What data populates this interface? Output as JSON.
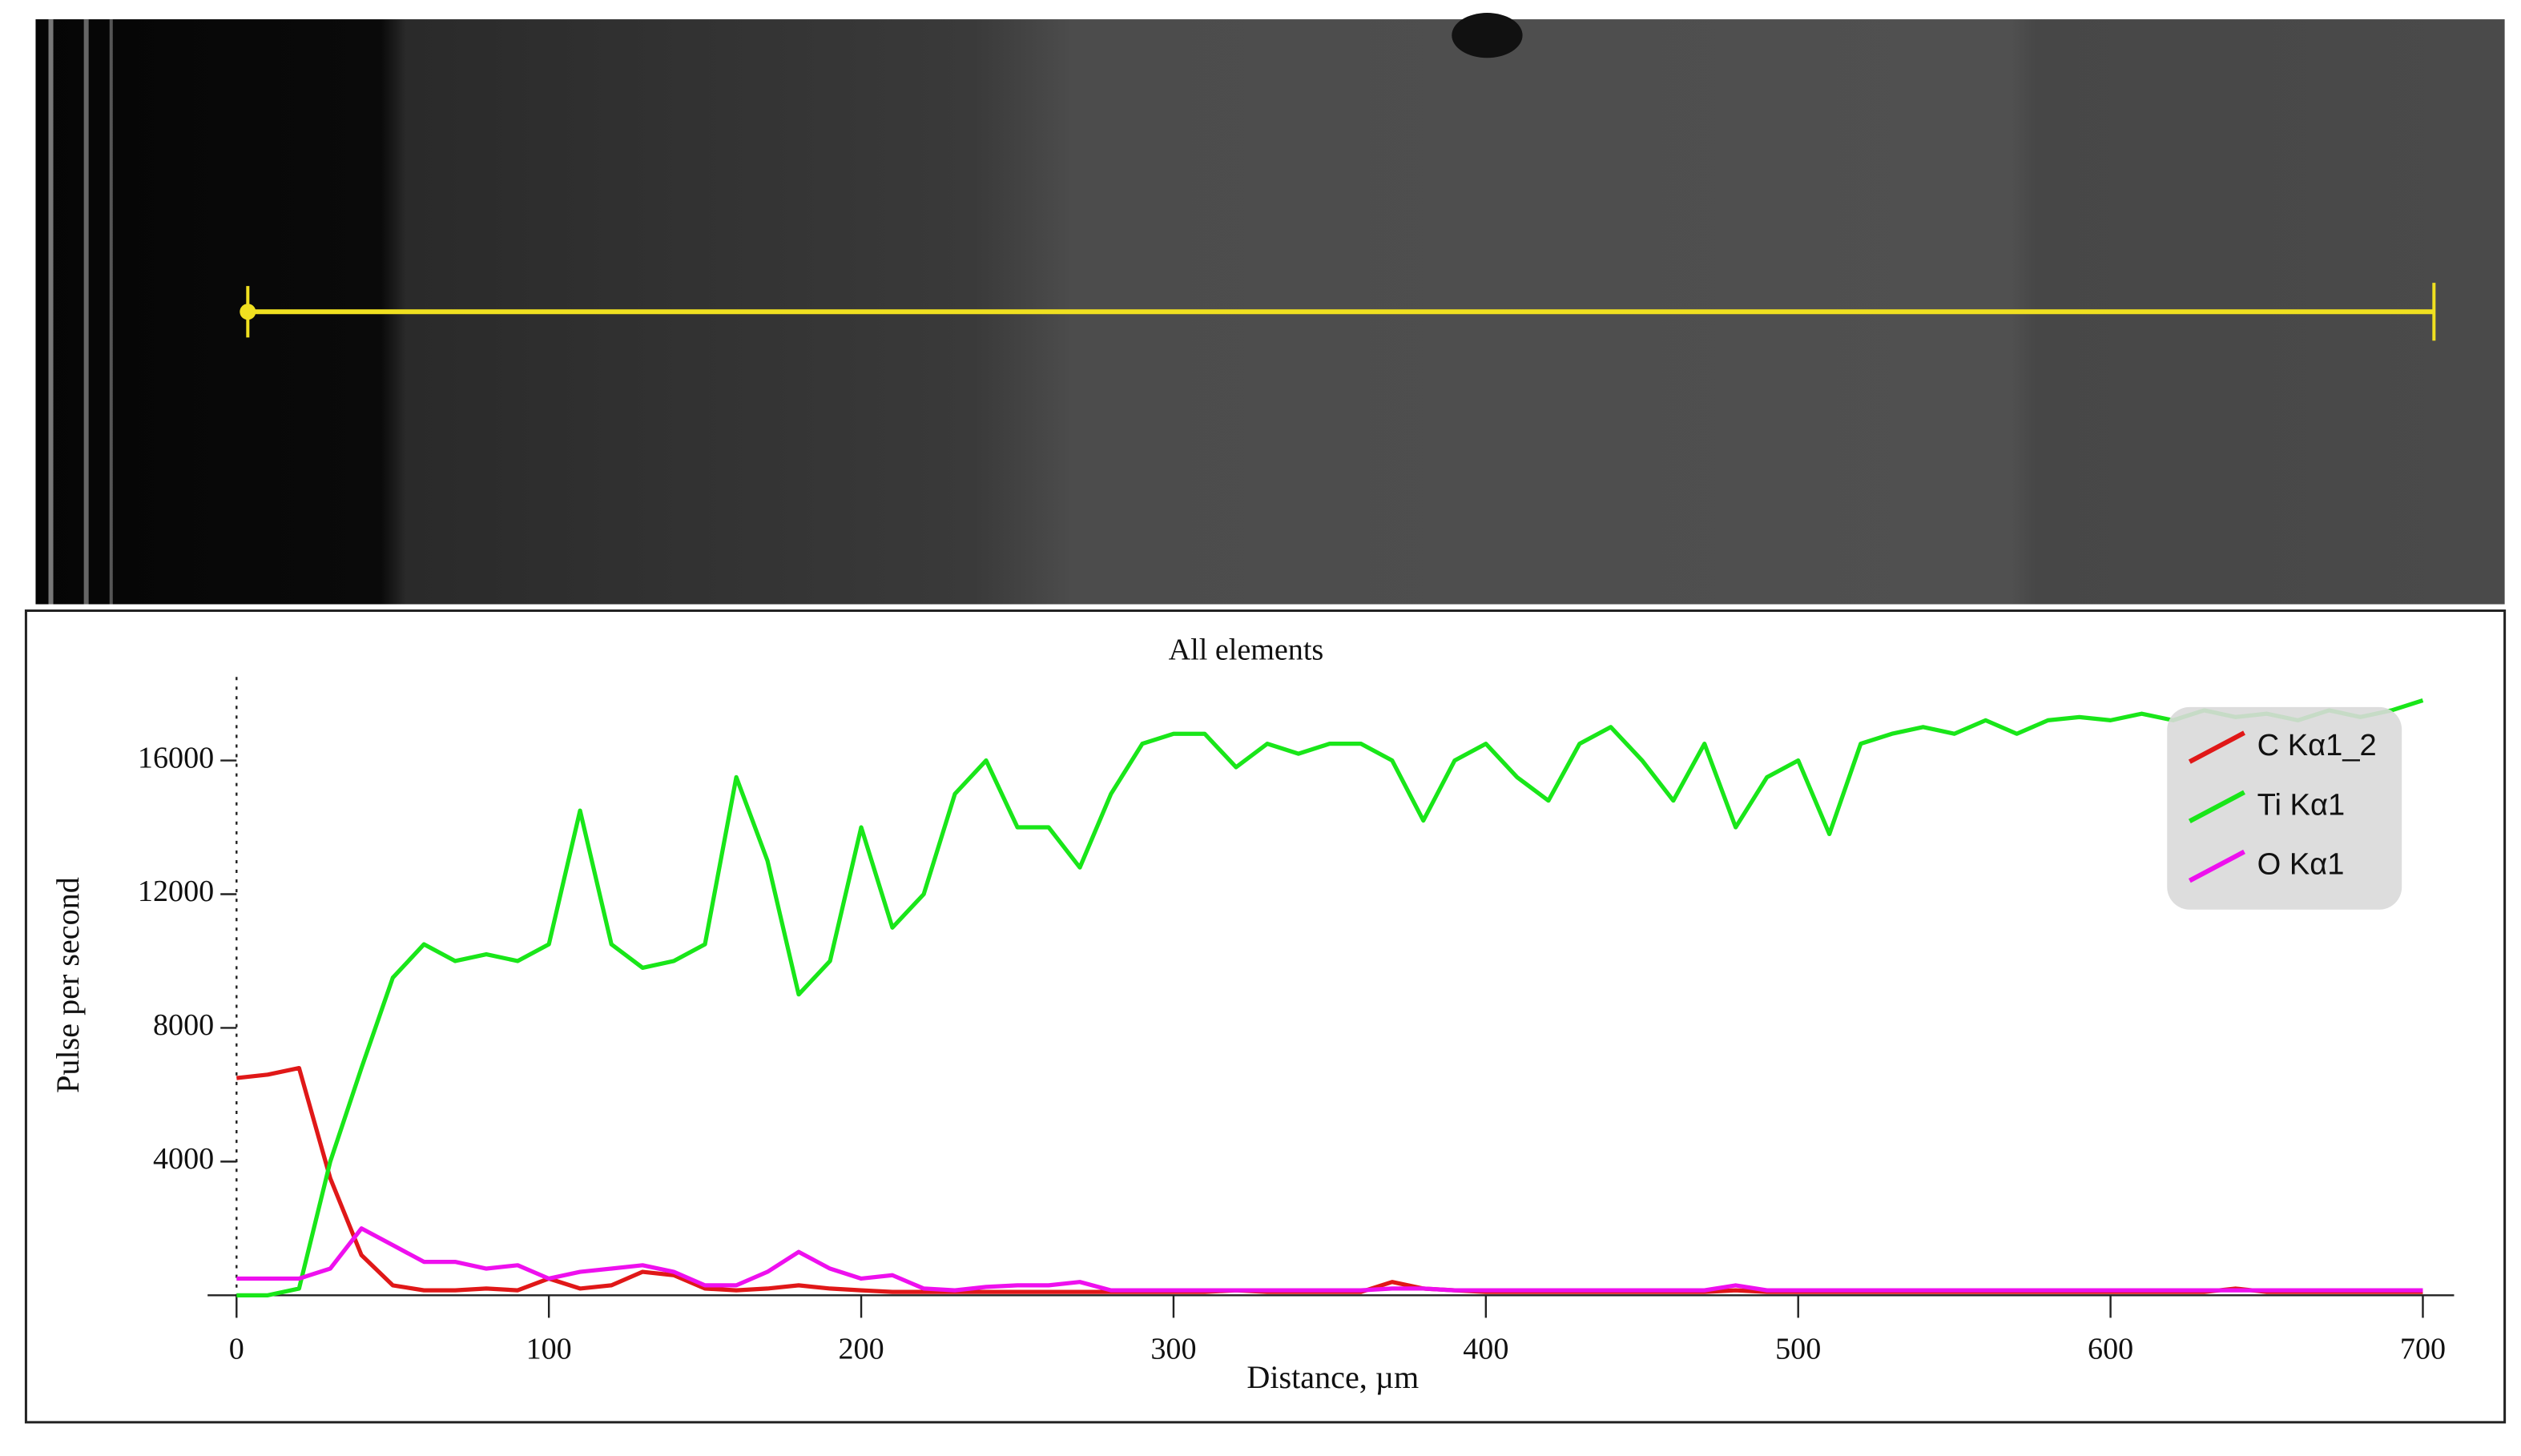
{
  "chart_data": {
    "type": "line",
    "title": "All elements",
    "xlabel": "Distance, µm",
    "ylabel": "Pulse per second",
    "x": [
      0,
      10,
      20,
      30,
      40,
      50,
      60,
      70,
      80,
      90,
      100,
      110,
      120,
      130,
      140,
      150,
      160,
      170,
      180,
      190,
      200,
      210,
      220,
      230,
      240,
      250,
      260,
      270,
      280,
      290,
      300,
      310,
      320,
      330,
      340,
      350,
      360,
      370,
      380,
      390,
      400,
      410,
      420,
      430,
      440,
      450,
      460,
      470,
      480,
      490,
      500,
      510,
      520,
      530,
      540,
      550,
      560,
      570,
      580,
      590,
      600,
      610,
      620,
      630,
      640,
      650,
      660,
      670,
      680,
      690,
      700
    ],
    "series": [
      {
        "name": "C Kα1_2",
        "color": "#e01818",
        "values": [
          6500,
          6600,
          6800,
          3500,
          1200,
          300,
          150,
          150,
          200,
          150,
          500,
          200,
          300,
          700,
          600,
          200,
          150,
          200,
          300,
          200,
          150,
          100,
          100,
          100,
          100,
          100,
          100,
          100,
          100,
          100,
          100,
          100,
          150,
          100,
          100,
          100,
          100,
          400,
          200,
          150,
          100,
          100,
          100,
          100,
          100,
          100,
          100,
          100,
          150,
          100,
          100,
          100,
          100,
          100,
          100,
          100,
          100,
          100,
          100,
          100,
          100,
          100,
          100,
          100,
          200,
          100,
          100,
          100,
          100,
          100,
          100
        ]
      },
      {
        "name": "Ti Kα1",
        "color": "#19e619",
        "values": [
          0,
          0,
          200,
          4000,
          6800,
          9500,
          10500,
          10000,
          10200,
          10000,
          10500,
          14500,
          10500,
          9800,
          10000,
          10500,
          15500,
          13000,
          9000,
          10000,
          14000,
          11000,
          12000,
          15000,
          16000,
          14000,
          14000,
          12800,
          15000,
          16500,
          16800,
          16800,
          15800,
          16500,
          16200,
          16500,
          16500,
          16000,
          14200,
          16000,
          16500,
          15500,
          14800,
          16500,
          17000,
          16000,
          14800,
          16500,
          14000,
          15500,
          16000,
          13800,
          16500,
          16800,
          17000,
          16800,
          17200,
          16800,
          17200,
          17300,
          17200,
          17400,
          17200,
          17500,
          17300,
          17400,
          17200,
          17500,
          17300,
          17500,
          17800
        ]
      },
      {
        "name": "O Kα1",
        "color": "#ee10ee",
        "values": [
          500,
          500,
          500,
          800,
          2000,
          1500,
          1000,
          1000,
          800,
          900,
          500,
          700,
          800,
          900,
          700,
          300,
          300,
          700,
          1300,
          800,
          500,
          600,
          200,
          150,
          250,
          300,
          300,
          400,
          150,
          150,
          150,
          150,
          150,
          150,
          150,
          150,
          150,
          200,
          200,
          150,
          150,
          150,
          150,
          150,
          150,
          150,
          150,
          150,
          300,
          150,
          150,
          150,
          150,
          150,
          150,
          150,
          150,
          150,
          150,
          150,
          150,
          150,
          150,
          150,
          150,
          150,
          150,
          150,
          150,
          150,
          150
        ]
      }
    ],
    "xlim": [
      0,
      710
    ],
    "xticks": [
      0,
      100,
      200,
      300,
      400,
      500,
      600,
      700
    ],
    "ylim": [
      0,
      18500
    ],
    "yticks": [
      4000,
      8000,
      12000,
      16000
    ],
    "legend": "upper right"
  }
}
